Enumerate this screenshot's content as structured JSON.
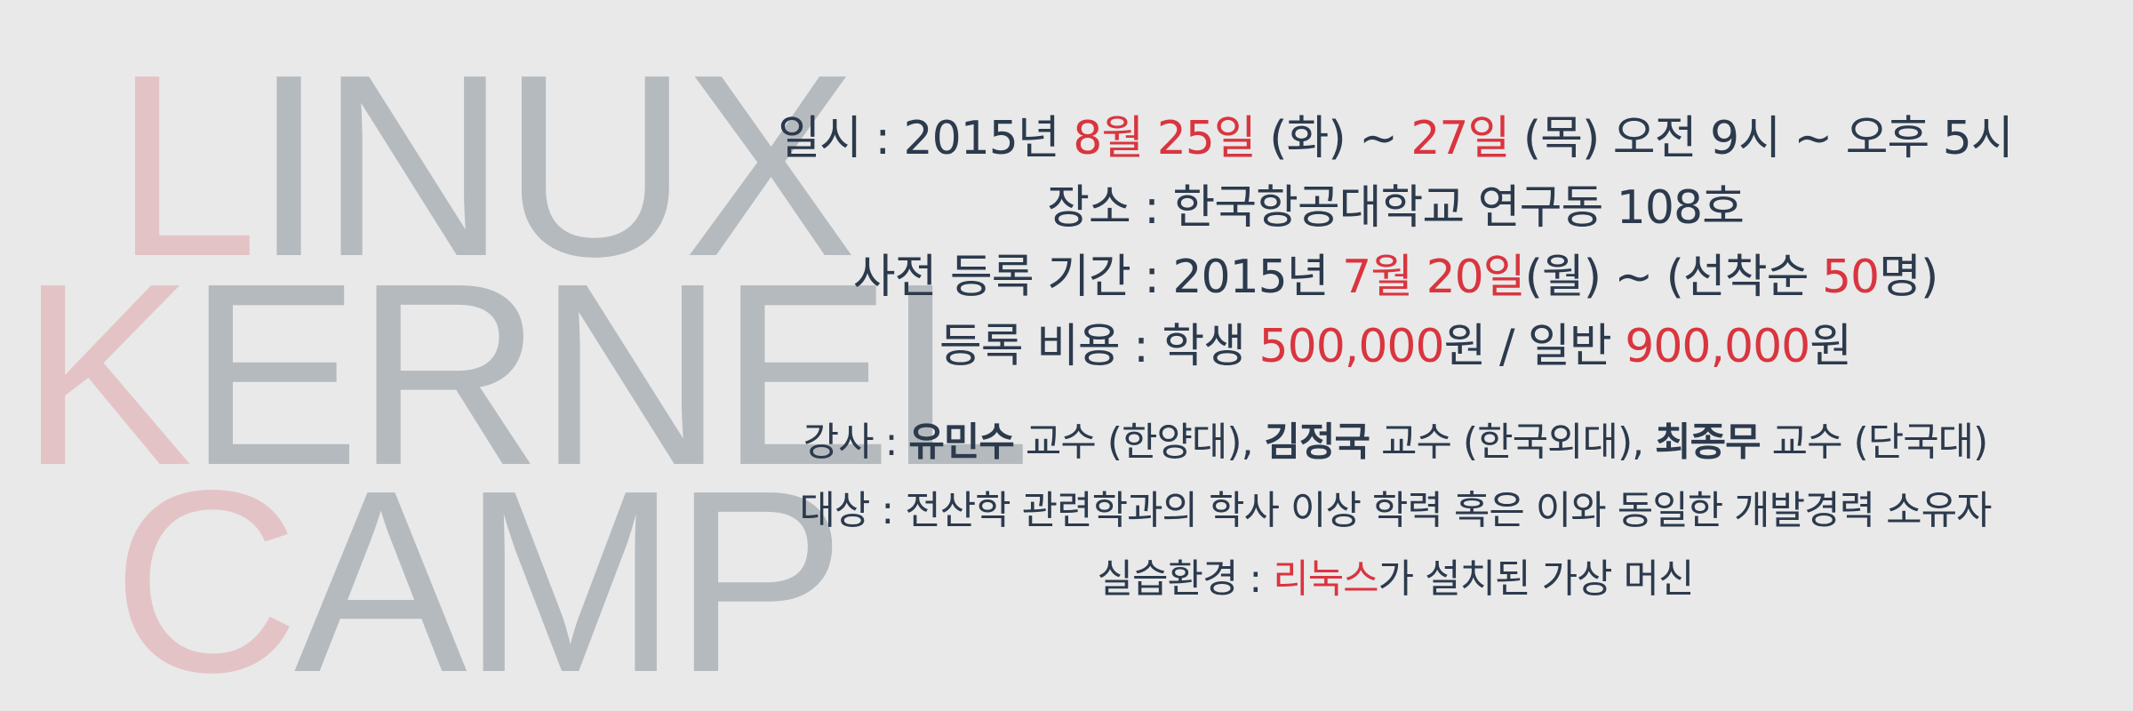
{
  "wordmark": {
    "line1": {
      "first": "L",
      "rest": "INUX"
    },
    "line2": {
      "first": "K",
      "rest": "ERNEL"
    },
    "line3": {
      "first": "C",
      "rest": "AMP"
    }
  },
  "colors": {
    "background": "#e9e9e9",
    "text": "#2c3a4d",
    "highlight": "#d9353f",
    "wordmark_gray": "#b5babf",
    "wordmark_pink": "#e4c3c6"
  },
  "schedule": {
    "label": "일시 : 2015년 ",
    "start_date": "8월 25일",
    "start_day": " (화) ~ ",
    "end_date": "27일",
    "end_rest": " (목) 오전 9시 ~ 오후 5시"
  },
  "venue": {
    "text": "장소 : 한국항공대학교 연구동 108호"
  },
  "registration": {
    "label": "사전 등록 기간 : 2015년 ",
    "date": "7월 20일",
    "mid": "(월) ~ (선착순 ",
    "count": "50",
    "suffix": "명)"
  },
  "fee": {
    "label": "등록 비용 : 학생 ",
    "student_amount": "500,000",
    "mid": "원 / 일반 ",
    "general_amount": "900,000",
    "suffix": "원"
  },
  "instructors": {
    "label": "강사 : ",
    "name1": "유민수",
    "aff1": " 교수 (한양대), ",
    "name2": "김정국",
    "aff2": " 교수 (한국외대), ",
    "name3": "최종무",
    "aff3": " 교수 (단국대)"
  },
  "audience": {
    "text": "대상 : 전산학 관련학과의 학사 이상 학력 혹은 이와 동일한 개발경력 소유자"
  },
  "environment": {
    "label": "실습환경 : ",
    "os": "리눅스",
    "suffix": "가 설치된 가상 머신"
  }
}
